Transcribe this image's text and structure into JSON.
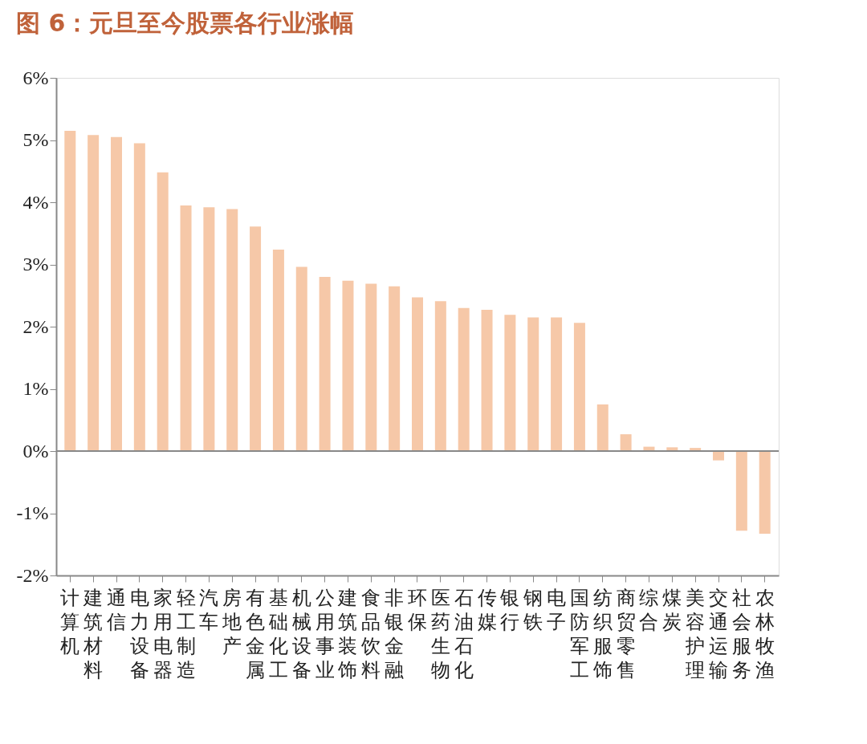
{
  "chart_data": {
    "type": "bar",
    "title": "图 6：元旦至今股票各行业涨幅",
    "categories": [
      "计算机",
      "建筑材料",
      "通信",
      "电力设备",
      "家用电器",
      "轻工制造",
      "汽车",
      "房地产",
      "有色金属",
      "基础化工",
      "机械设备",
      "公用事业",
      "建筑装饰",
      "食品饮料",
      "非银金融",
      "环保",
      "医药生物",
      "石油石化",
      "传媒",
      "银行",
      "钢铁",
      "电子",
      "国防军工",
      "纺织服饰",
      "商贸零售",
      "综合",
      "煤炭",
      "美容护理",
      "交通运输",
      "社会服务",
      "农林牧渔"
    ],
    "values": [
      5.15,
      5.08,
      5.05,
      4.95,
      4.48,
      3.95,
      3.92,
      3.89,
      3.61,
      3.24,
      2.96,
      2.8,
      2.74,
      2.69,
      2.65,
      2.47,
      2.41,
      2.3,
      2.27,
      2.19,
      2.15,
      2.15,
      2.06,
      0.75,
      0.27,
      0.07,
      0.06,
      0.05,
      -0.15,
      -1.28,
      -1.33
    ],
    "color": "#f6c8a8",
    "ylim": [
      -2,
      6
    ],
    "yticks": [
      {
        "value": -2,
        "label": "-2%"
      },
      {
        "value": -1,
        "label": "-1%"
      },
      {
        "value": 0,
        "label": "0%"
      },
      {
        "value": 1,
        "label": "1%"
      },
      {
        "value": 2,
        "label": "2%"
      },
      {
        "value": 3,
        "label": "3%"
      },
      {
        "value": 4,
        "label": "4%"
      },
      {
        "value": 5,
        "label": "5%"
      },
      {
        "value": 6,
        "label": "6%"
      }
    ],
    "ref_lines": [
      {
        "axis": "y",
        "value": 0,
        "color": "#888888"
      }
    ],
    "grid": false
  }
}
